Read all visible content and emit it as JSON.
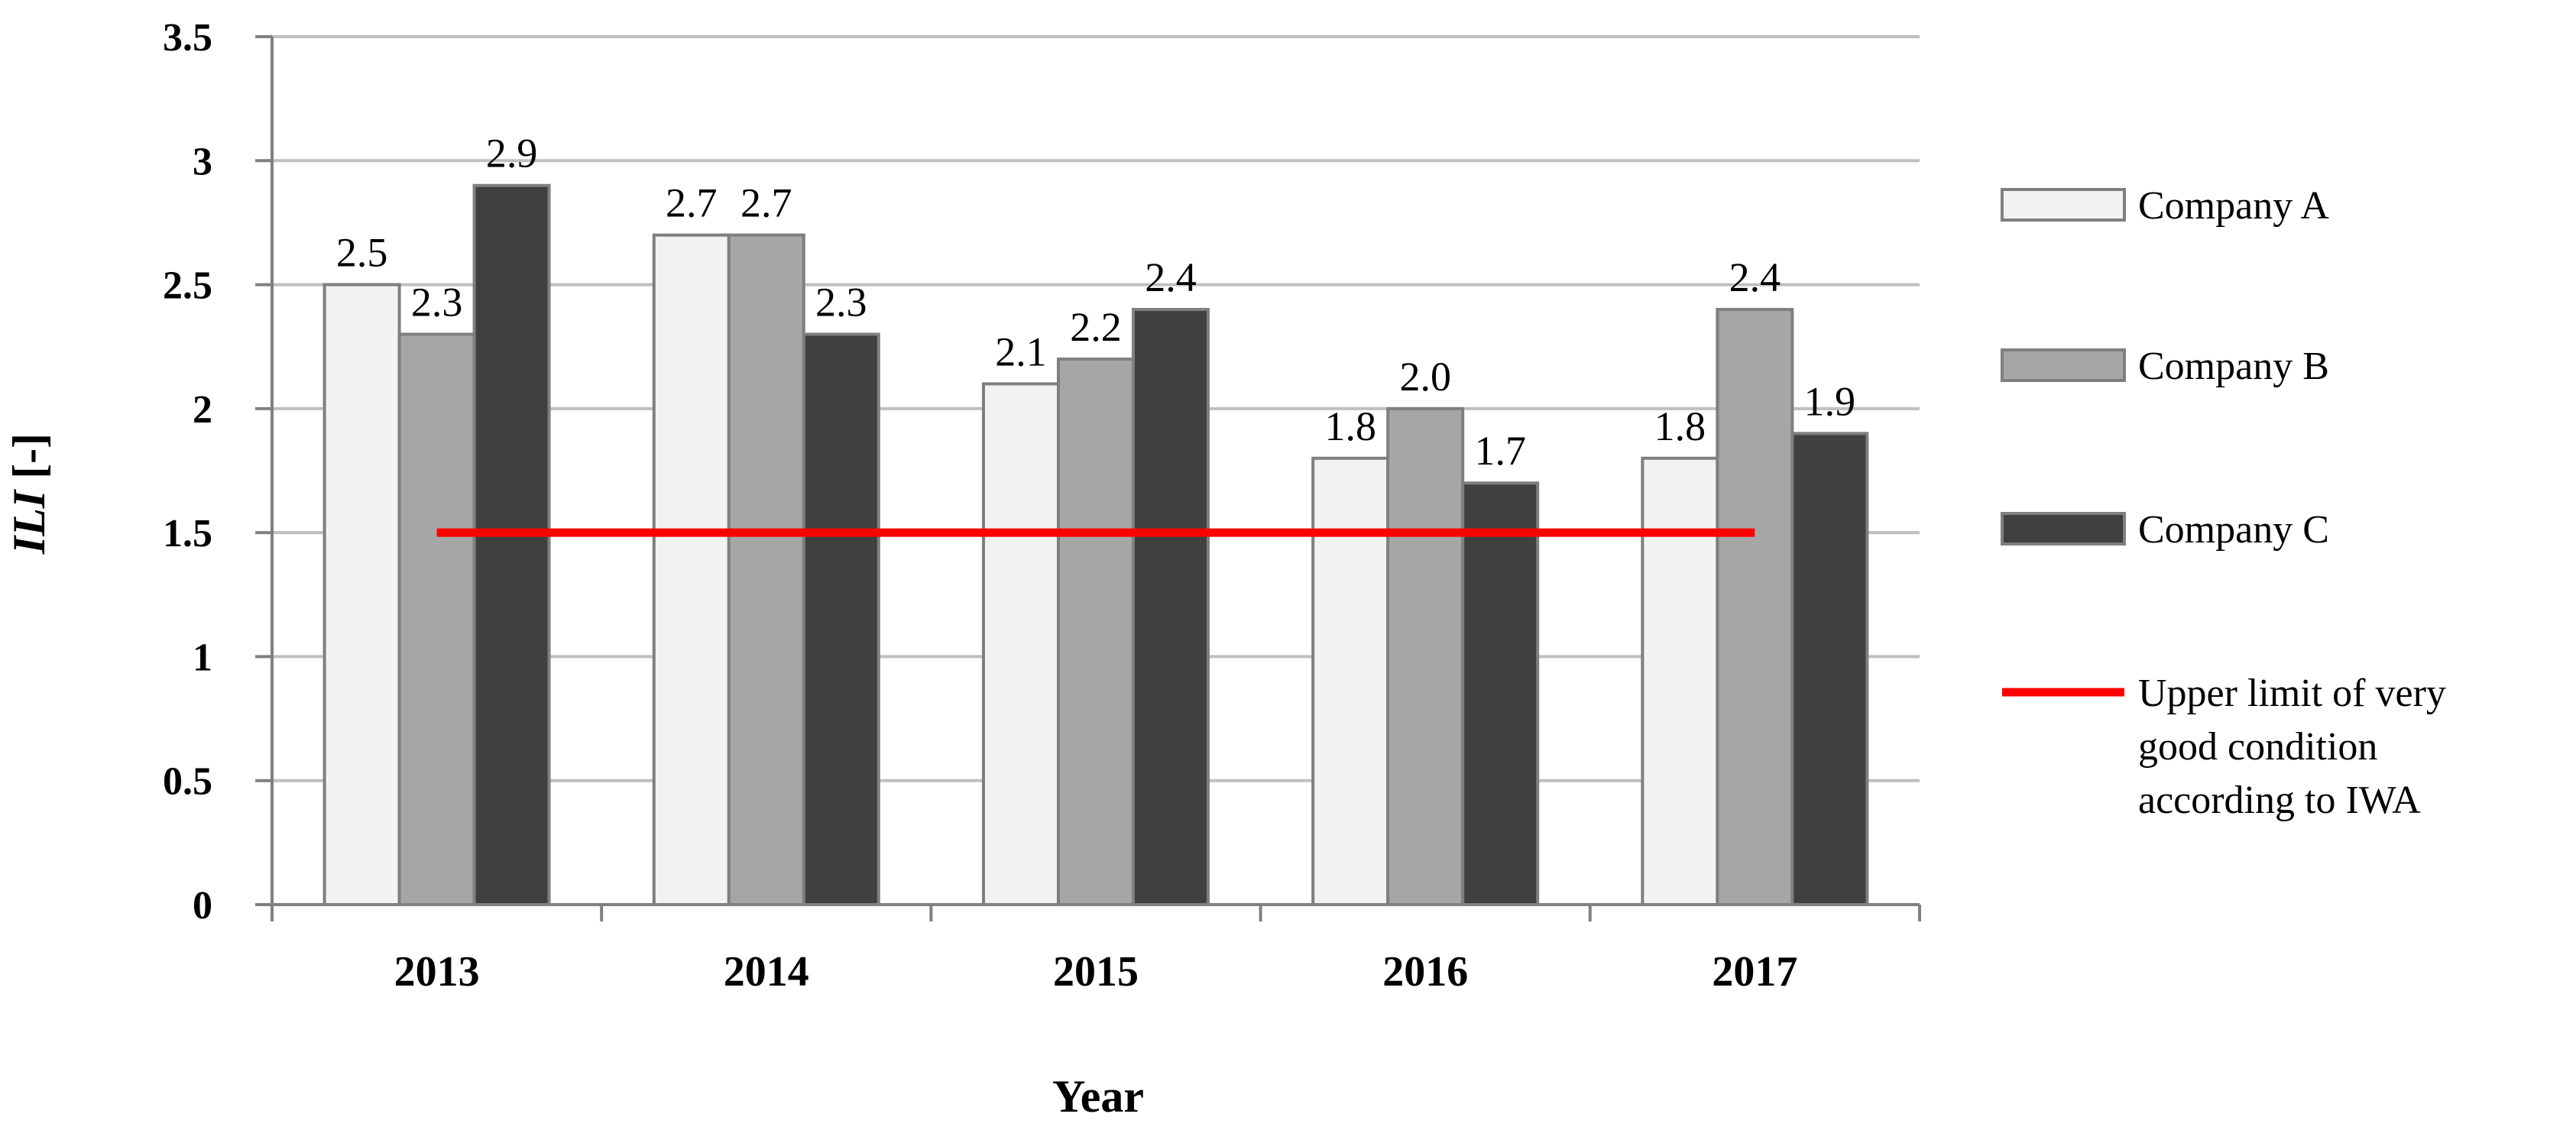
{
  "chart_data": {
    "type": "bar",
    "categories": [
      "2013",
      "2014",
      "2015",
      "2016",
      "2017"
    ],
    "series": [
      {
        "name": "Company A",
        "values": [
          2.5,
          2.7,
          2.1,
          1.8,
          1.8
        ],
        "labels": [
          "2.5",
          "2.7",
          "2.1",
          "1.8",
          "1.8"
        ],
        "color": "#f2f2f2"
      },
      {
        "name": "Company B",
        "values": [
          2.3,
          2.7,
          2.2,
          2.0,
          2.4
        ],
        "labels": [
          "2.3",
          "2.7",
          "2.2",
          "2.0",
          "2.4"
        ],
        "color": "#a6a6a6"
      },
      {
        "name": "Company C",
        "values": [
          2.9,
          2.3,
          2.4,
          1.7,
          1.9
        ],
        "labels": [
          "2.9",
          "2.3",
          "2.4",
          "1.7",
          "1.9"
        ],
        "color": "#404040"
      }
    ],
    "reference_line": {
      "value": 1.5,
      "color": "#ff0000",
      "label_lines": [
        "Upper limit of very",
        "good condition",
        "according to IWA"
      ]
    },
    "yticks": [
      "0",
      "0.5",
      "1",
      "1.5",
      "2",
      "2.5",
      "3",
      "3.5"
    ],
    "ylim": [
      0,
      3.5
    ],
    "xlabel": "Year",
    "ylabel_italic": "ILI",
    "ylabel_unit": " [-]",
    "grid": true,
    "legend_position": "right",
    "bar_outline_color": "#7f7f7f",
    "grid_color": "#bfbfbf"
  }
}
